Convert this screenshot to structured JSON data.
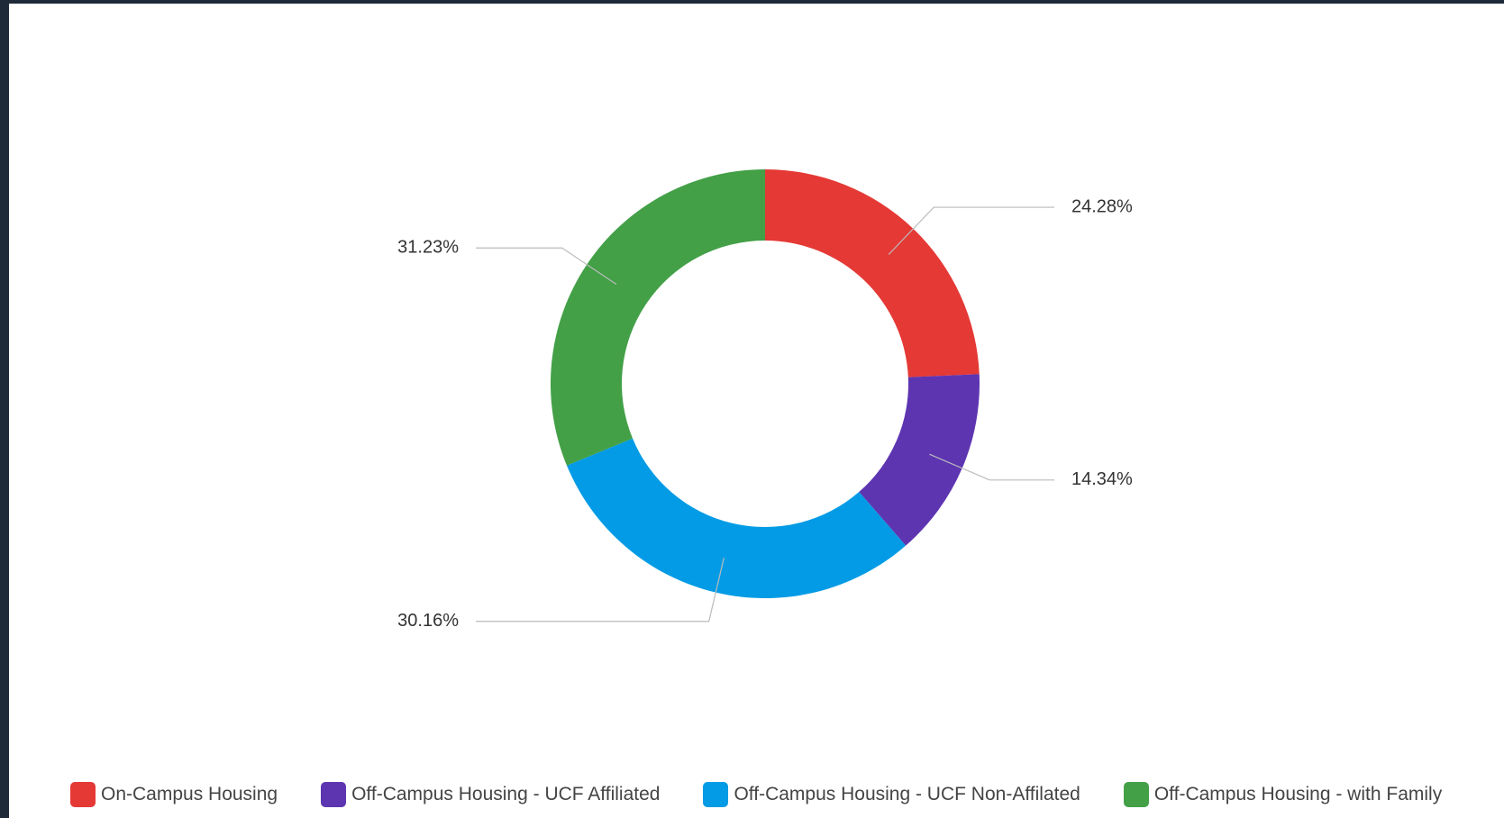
{
  "chart_data": {
    "type": "donut",
    "categories": [
      "On-Campus Housing",
      "Off-Campus Housing - UCF Affiliated",
      "Off-Campus Housing - UCF Non-Affilated",
      "Off-Campus Housing - with Family"
    ],
    "values": [
      24.28,
      14.34,
      30.16,
      31.23
    ],
    "value_labels": [
      "24.28%",
      "14.34%",
      "30.16%",
      "31.23%"
    ],
    "colors": [
      "#e53935",
      "#5e35b1",
      "#039be5",
      "#43a047"
    ],
    "legend": "bottom"
  }
}
